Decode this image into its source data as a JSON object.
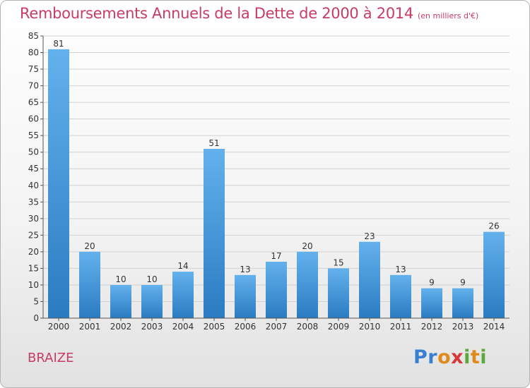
{
  "header": {
    "title": "Remboursements Annuels de la Dette de 2000 à 2014",
    "unit": "(en milliers d'€)"
  },
  "footer": {
    "commune": "BRAIZE",
    "brand_parts": [
      "Pr",
      "o",
      "x",
      "i",
      "t",
      "i"
    ]
  },
  "colors": {
    "title": "#c83c64",
    "bar_top": "#63b1ec",
    "bar_bottom": "#2b7bc2",
    "grid": "#d2d2d2"
  },
  "chart_data": {
    "type": "bar",
    "title": "Remboursements Annuels de la Dette de 2000 à 2014",
    "xlabel": "",
    "ylabel": "",
    "categories": [
      "2000",
      "2001",
      "2002",
      "2003",
      "2004",
      "2005",
      "2006",
      "2007",
      "2008",
      "2009",
      "2010",
      "2011",
      "2012",
      "2013",
      "2014"
    ],
    "values": [
      81,
      20,
      10,
      10,
      14,
      51,
      13,
      17,
      20,
      15,
      23,
      13,
      9,
      9,
      26
    ],
    "ylim": [
      0,
      85
    ],
    "ytick_step": 5,
    "grid": true
  }
}
